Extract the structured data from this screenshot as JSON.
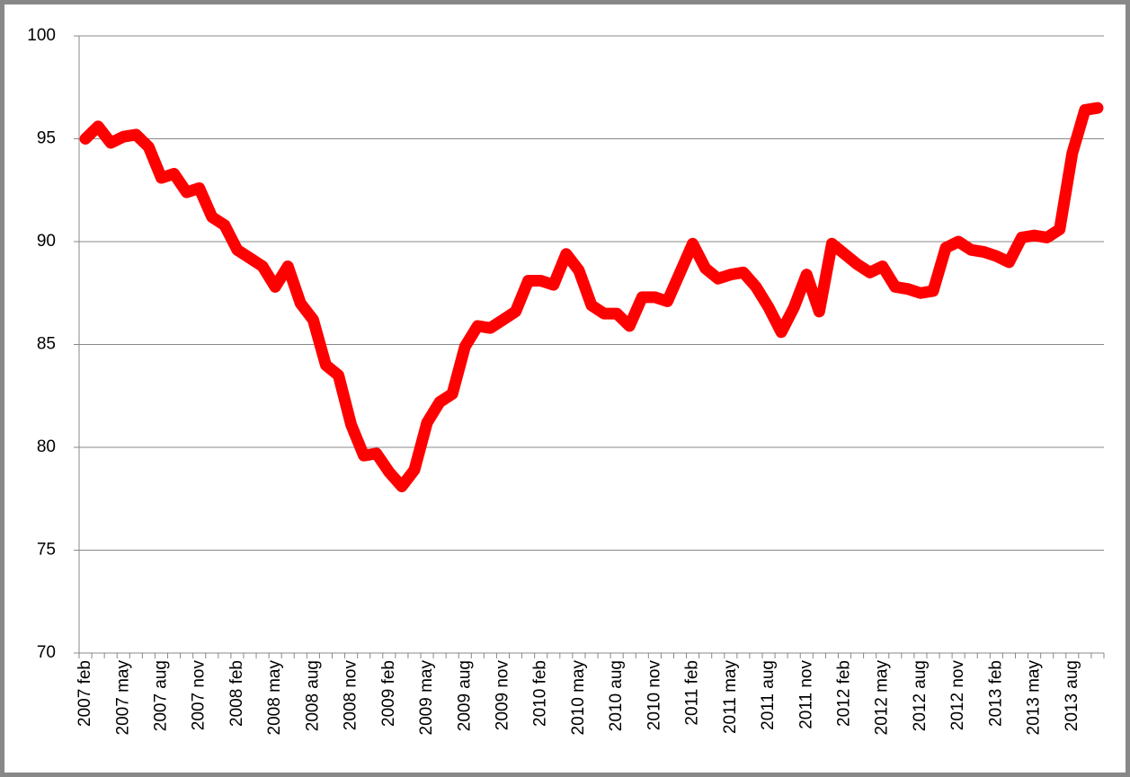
{
  "chart_data": {
    "type": "line",
    "categories": [
      "2007 feb",
      null,
      null,
      "2007 may",
      null,
      null,
      "2007 aug",
      null,
      null,
      "2007 nov",
      null,
      null,
      "2008 feb",
      null,
      null,
      "2008 may",
      null,
      null,
      "2008 aug",
      null,
      null,
      "2008 nov",
      null,
      null,
      "2009 feb",
      null,
      null,
      "2009 may",
      null,
      null,
      "2009 aug",
      null,
      null,
      "2009 nov",
      null,
      null,
      "2010 feb",
      null,
      null,
      "2010 may",
      null,
      null,
      "2010 aug",
      null,
      null,
      "2010 nov",
      null,
      null,
      "2011 feb",
      null,
      null,
      "2011 may",
      null,
      null,
      "2011 aug",
      null,
      null,
      "2011 nov",
      null,
      null,
      "2012 feb",
      null,
      null,
      "2012 may",
      null,
      null,
      "2012 aug",
      null,
      null,
      "2012 nov",
      null,
      null,
      "2013 feb",
      null,
      null,
      "2013 may",
      null,
      null,
      "2013 aug",
      null,
      null
    ],
    "values": [
      95.0,
      95.6,
      94.8,
      95.1,
      95.2,
      94.6,
      93.1,
      93.3,
      92.4,
      92.6,
      91.2,
      90.8,
      89.6,
      89.2,
      88.8,
      87.8,
      88.8,
      87.0,
      86.2,
      84.0,
      83.5,
      81.1,
      79.6,
      79.7,
      78.8,
      78.1,
      78.9,
      81.2,
      82.2,
      82.6,
      84.9,
      85.9,
      85.8,
      86.2,
      86.6,
      88.1,
      88.1,
      87.9,
      89.4,
      88.6,
      86.9,
      86.5,
      86.5,
      85.9,
      87.3,
      87.3,
      87.1,
      88.5,
      89.9,
      88.7,
      88.2,
      88.4,
      88.5,
      87.8,
      86.8,
      85.6,
      86.8,
      88.4,
      86.6,
      89.9,
      89.4,
      88.9,
      88.5,
      88.8,
      87.8,
      87.7,
      87.5,
      87.6,
      89.7,
      90.0,
      89.6,
      89.5,
      89.3,
      89.0,
      90.2,
      90.3,
      90.2,
      90.6,
      94.3,
      96.4,
      96.5
    ],
    "color": "#ff0000",
    "ylim": [
      70,
      100
    ],
    "yticks": [
      70,
      75,
      80,
      85,
      90,
      95,
      100
    ],
    "grid": true
  }
}
